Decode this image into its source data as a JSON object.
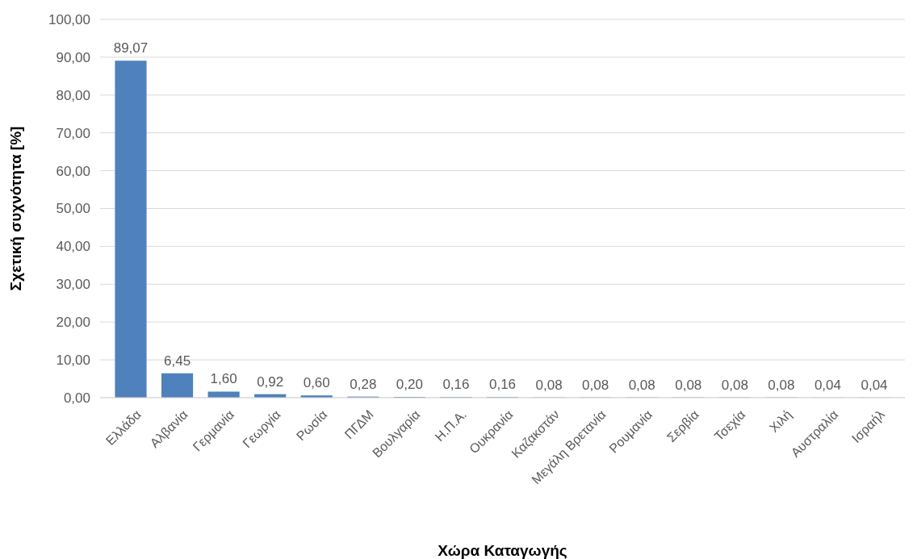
{
  "chart_data": {
    "type": "bar",
    "xlabel": "Χώρα Καταγωγής",
    "ylabel": "Σχετική συχνότητα [%]",
    "categories": [
      "Ελλάδα",
      "Αλβανία",
      "Γερμανία",
      "Γεωργία",
      "Ρωσία",
      "ΠΓΔΜ",
      "Βουλγαρία",
      "Η.Π.Α.",
      "Ουκρανία",
      "Καζακστάν",
      "Μεγάλη Βρετανία",
      "Ρουμανία",
      "Σερβία",
      "Τσεχία",
      "Χιλή",
      "Αυστραλία",
      "Ισραήλ"
    ],
    "values": [
      89.07,
      6.45,
      1.6,
      0.92,
      0.6,
      0.28,
      0.2,
      0.16,
      0.16,
      0.08,
      0.08,
      0.08,
      0.08,
      0.08,
      0.08,
      0.04,
      0.04
    ],
    "value_labels": [
      "89,07",
      "6,45",
      "1,60",
      "0,92",
      "0,60",
      "0,28",
      "0,20",
      "0,16",
      "0,16",
      "0,08",
      "0,08",
      "0,08",
      "0,08",
      "0,08",
      "0,08",
      "0,04",
      "0,04"
    ],
    "color": "#4f81bd",
    "ylim": [
      0,
      100
    ],
    "yticks": [
      {
        "value": 0,
        "label": "0,00"
      },
      {
        "value": 10,
        "label": "10,00"
      },
      {
        "value": 20,
        "label": "20,00"
      },
      {
        "value": 30,
        "label": "30,00"
      },
      {
        "value": 40,
        "label": "40,00"
      },
      {
        "value": 50,
        "label": "50,00"
      },
      {
        "value": 60,
        "label": "60,00"
      },
      {
        "value": 70,
        "label": "70,00"
      },
      {
        "value": 80,
        "label": "80,00"
      },
      {
        "value": 90,
        "label": "90,00"
      },
      {
        "value": 100,
        "label": "100,00"
      }
    ],
    "grid": "y"
  }
}
